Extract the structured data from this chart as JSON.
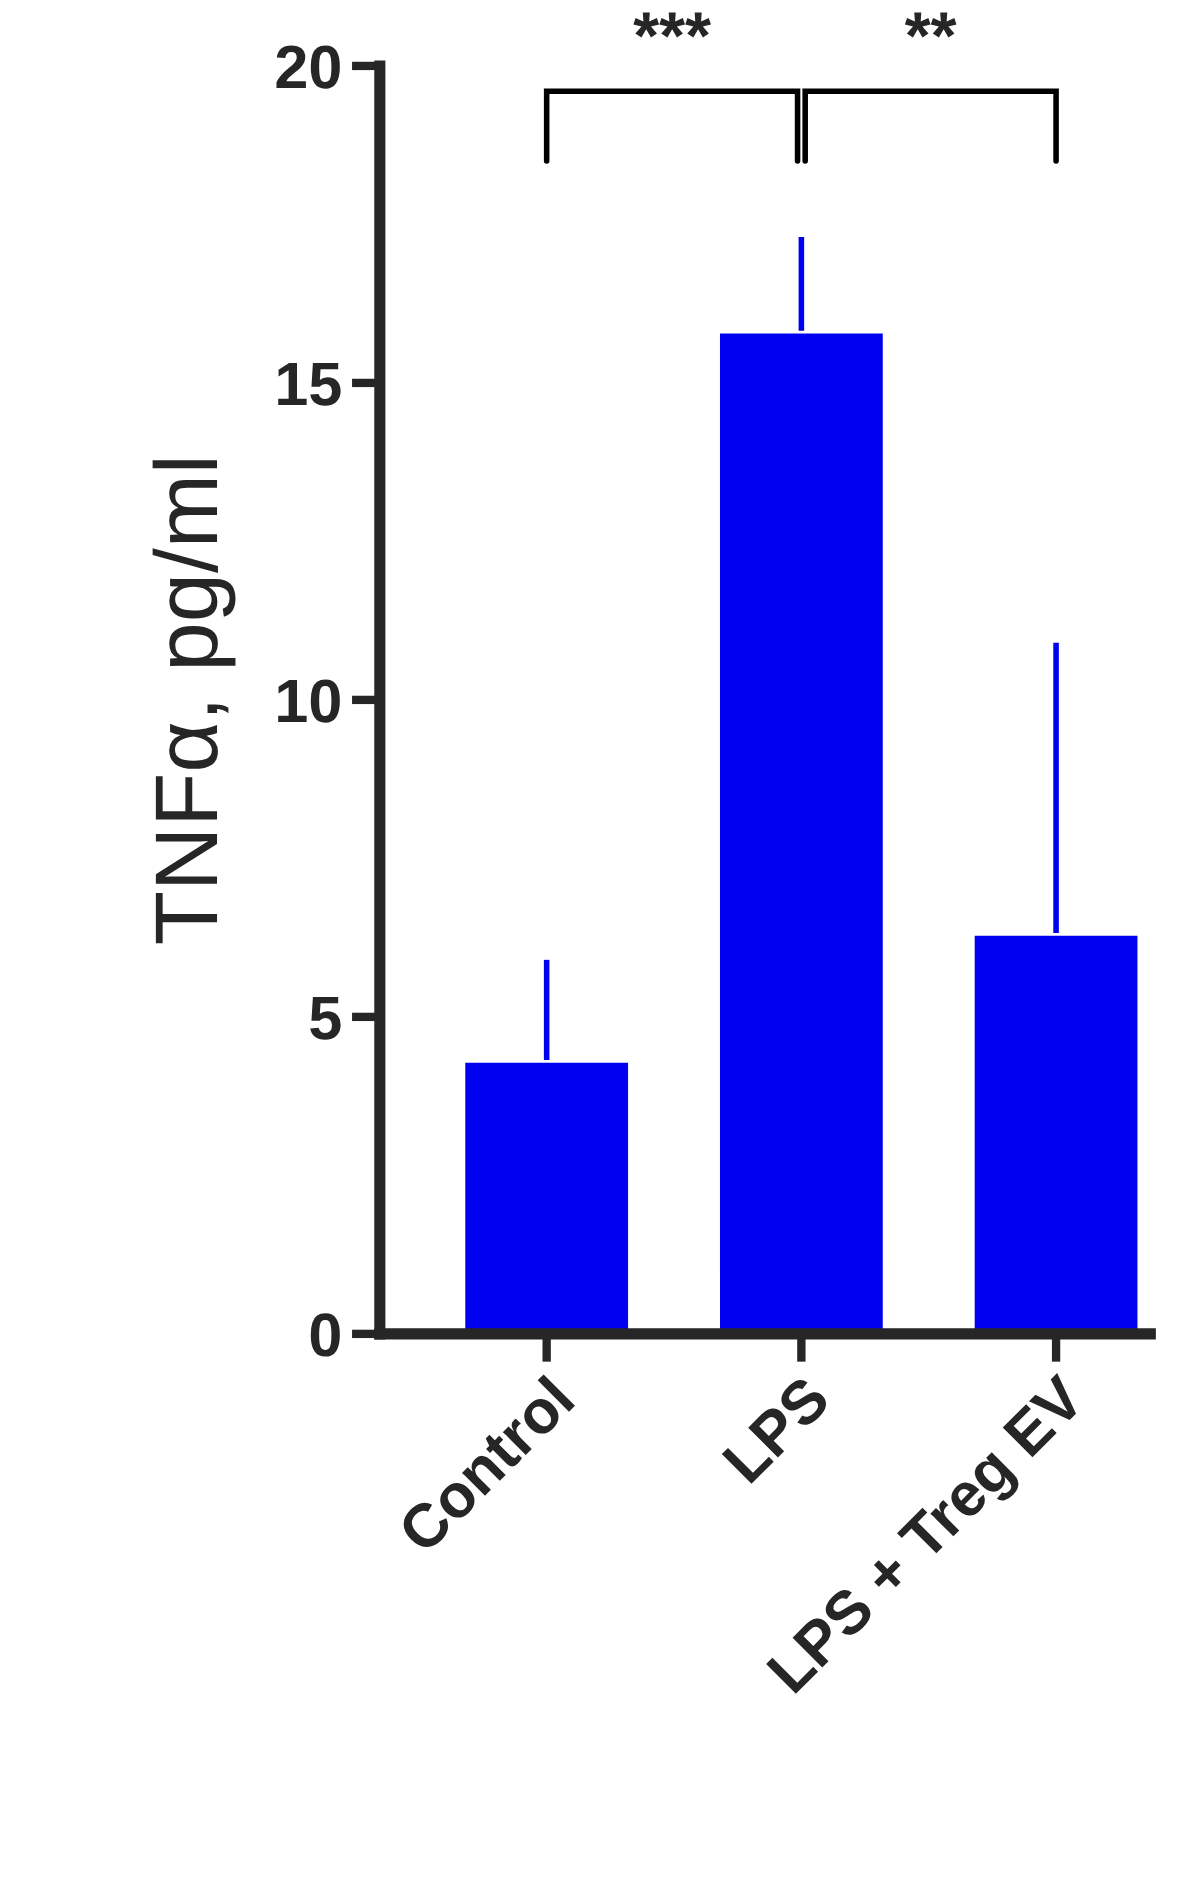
{
  "chart_data": {
    "type": "bar",
    "ylabel": "TNFα, pg/ml",
    "categories": [
      "Control",
      "LPS",
      "LPS + Treg EV"
    ],
    "values": [
      4.3,
      15.8,
      6.3
    ],
    "errors": [
      [
        4.3,
        5.9
      ],
      [
        15.8,
        17.3
      ],
      [
        6.3,
        10.9
      ]
    ],
    "color": "#0000f0",
    "ylim": [
      0,
      20
    ],
    "yticks": [
      0,
      5,
      10,
      15,
      20
    ],
    "grid": false,
    "legend": false,
    "annotations": [
      "***",
      "**"
    ]
  }
}
